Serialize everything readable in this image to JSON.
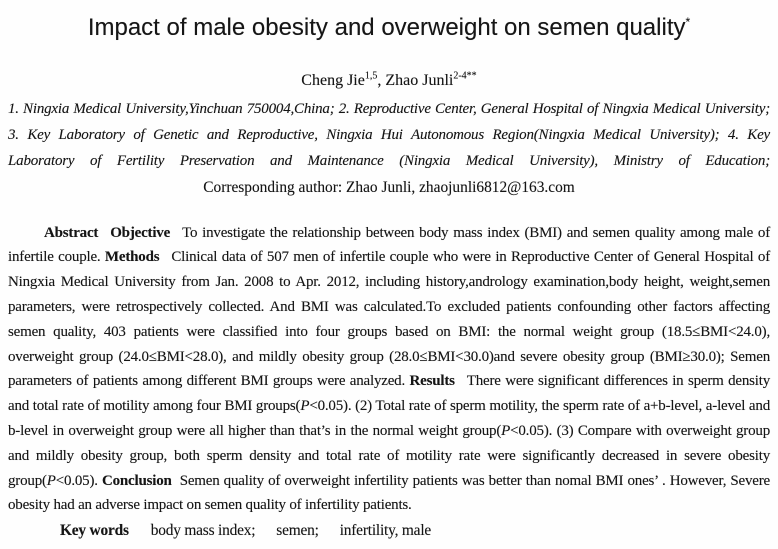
{
  "paper": {
    "title": "Impact of male obesity and overweight on semen quality",
    "title_note": "*",
    "authors": {
      "author1_name": "Cheng Jie",
      "author1_sup": "1,5",
      "separator": ", ",
      "author2_name": "Zhao Junli",
      "author2_sup": "2-4**"
    },
    "affiliations": "1. Ningxia Medical University,Yinchuan 750004,China; 2. Reproductive Center, General Hospital of Ningxia Medical University; 3. Key Laboratory of Genetic and Reproductive, Ningxia Hui Autonomous Region(Ningxia Medical University); 4. Key Laboratory of Fertility Preservation and Maintenance (Ningxia Medical University), Ministry of Education;",
    "corresponding": "Corresponding author: Zhao Junli, zhaojunli6812@163.com",
    "abstract": {
      "abstract_label": "Abstract",
      "objective_label": "Objective",
      "objective_text": "To investigate the relationship between body mass index (BMI) and semen quality among male of infertile couple. ",
      "methods_label": "Methods",
      "methods_text": "Clinical data of 507 men of infertile couple who were in Reproductive Center of General Hospital of Ningxia Medical University from Jan. 2008 to Apr. 2012, including history,andrology examination,body height, weight,semen parameters, were retrospectively collected. And BMI was calculated.To excluded patients confounding other factors affecting semen quality, 403 patients were classified into four groups based on BMI: the normal weight group (18.5≤BMI<24.0), overweight group (24.0≤BMI<28.0), and mildly obesity group (28.0≤BMI<30.0)and severe obesity group (BMI≥30.0); Semen parameters of patients among different BMI groups were analyzed. ",
      "results_label": "Results",
      "results_text_1": "There were significant differences in sperm density and total rate of motility among four BMI groups(",
      "p_symbol": "P",
      "results_text_2": "<0.05). (2) Total rate of sperm motility, the sperm rate of a+b-level, a-level and b-level in overweight group were all higher than that’s in the normal weight group(",
      "results_text_3": "<0.05). (3) Compare with overweight group and mildly obesity group, both sperm density and total rate of motility rate were significantly decreased in severe obesity group(",
      "results_text_4": "<0.05). ",
      "conclusion_label": "Conclusion",
      "conclusion_text": "Semen quality of overweight infertility patients was better than nomal BMI ones’ . However, Severe obesity had an adverse impact on semen quality of infertility patients."
    },
    "keywords": {
      "label": "Key words",
      "item1": "body mass index;",
      "item2": "semen;",
      "item3": "infertility, male"
    }
  }
}
